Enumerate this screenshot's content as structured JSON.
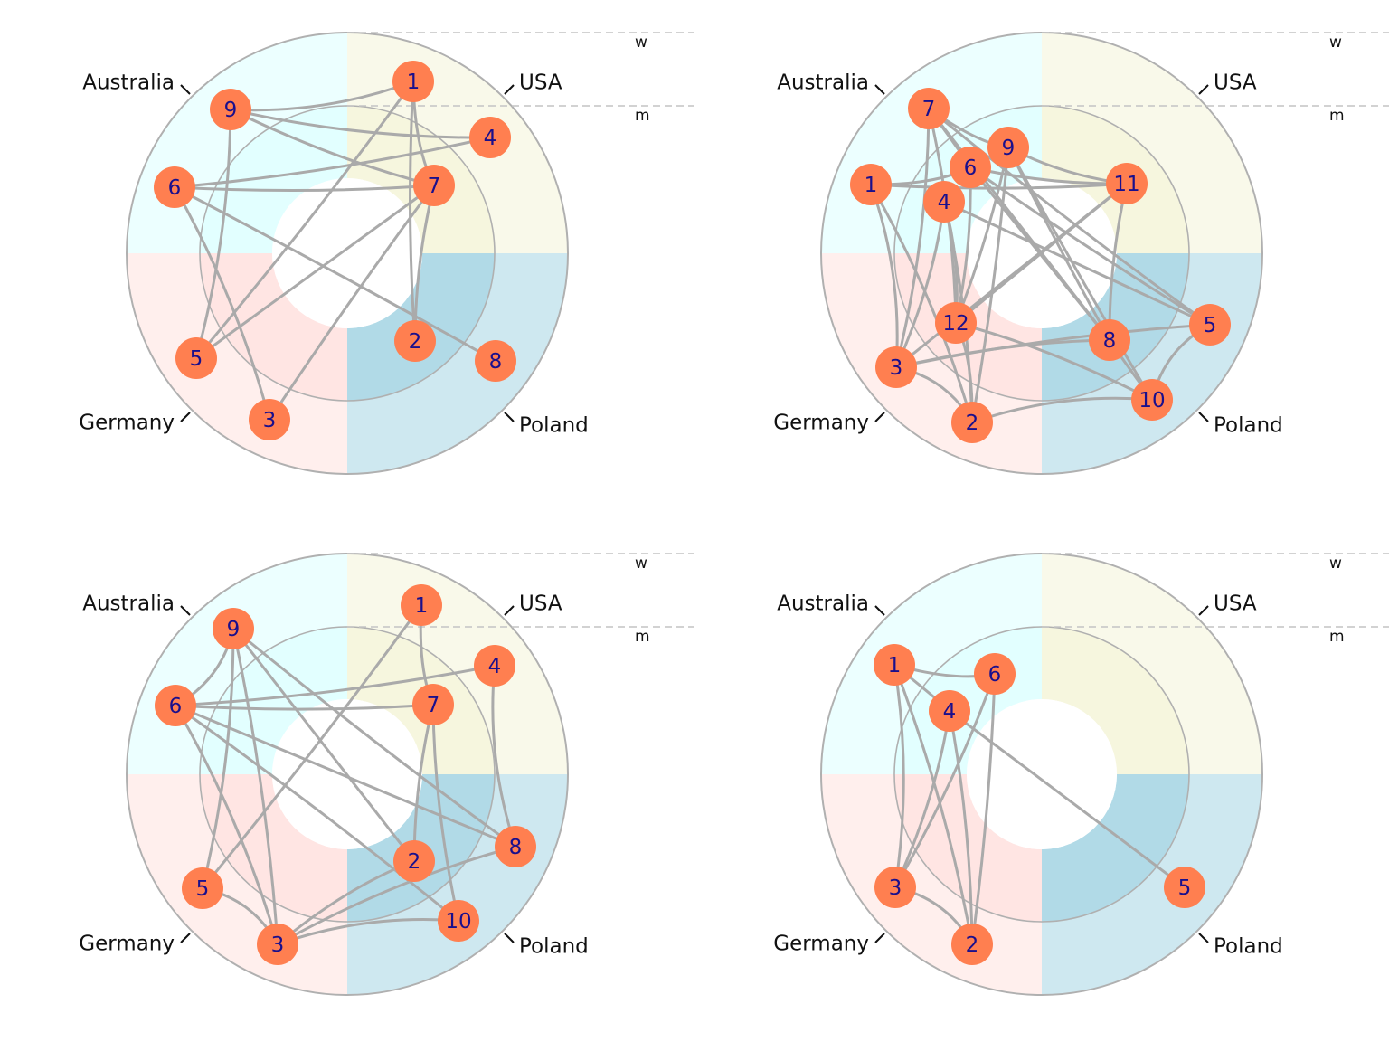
{
  "colors": {
    "node_fill": "#ff7f50",
    "node_text": "#1a0f8c",
    "edge": "#aaaaaa",
    "ring_stroke": "#b0b0b0",
    "sector_USA": "#f5f5dc",
    "sector_Poland": "#add8e6",
    "sector_Germany": "#ffe4e1",
    "sector_Australia": "#e0ffff"
  },
  "ring_labels": {
    "outer": "w",
    "inner": "m"
  },
  "sectors": [
    "USA",
    "Poland",
    "Germany",
    "Australia"
  ],
  "panels": [
    {
      "nodes": [
        {
          "id": "1",
          "sector": "USA",
          "ring": "w"
        },
        {
          "id": "4",
          "sector": "USA",
          "ring": "w"
        },
        {
          "id": "7",
          "sector": "USA",
          "ring": "m"
        },
        {
          "id": "2",
          "sector": "Poland",
          "ring": "m"
        },
        {
          "id": "8",
          "sector": "Poland",
          "ring": "w"
        },
        {
          "id": "3",
          "sector": "Germany",
          "ring": "w"
        },
        {
          "id": "5",
          "sector": "Germany",
          "ring": "w"
        },
        {
          "id": "6",
          "sector": "Australia",
          "ring": "w"
        },
        {
          "id": "9",
          "sector": "Australia",
          "ring": "w"
        }
      ],
      "edges": [
        [
          "9",
          "1"
        ],
        [
          "9",
          "4"
        ],
        [
          "9",
          "7"
        ],
        [
          "9",
          "5"
        ],
        [
          "6",
          "4"
        ],
        [
          "6",
          "7"
        ],
        [
          "6",
          "3"
        ],
        [
          "6",
          "8"
        ],
        [
          "1",
          "7"
        ],
        [
          "1",
          "2"
        ],
        [
          "1",
          "5"
        ],
        [
          "7",
          "2"
        ],
        [
          "7",
          "5"
        ],
        [
          "7",
          "3"
        ]
      ]
    },
    {
      "nodes": [
        {
          "id": "11",
          "sector": "USA",
          "ring": "m"
        },
        {
          "id": "5",
          "sector": "Poland",
          "ring": "w"
        },
        {
          "id": "8",
          "sector": "Poland",
          "ring": "m"
        },
        {
          "id": "10",
          "sector": "Poland",
          "ring": "w"
        },
        {
          "id": "2",
          "sector": "Germany",
          "ring": "w"
        },
        {
          "id": "3",
          "sector": "Germany",
          "ring": "w"
        },
        {
          "id": "12",
          "sector": "Germany",
          "ring": "m"
        },
        {
          "id": "1",
          "sector": "Australia",
          "ring": "w"
        },
        {
          "id": "4",
          "sector": "Australia",
          "ring": "m"
        },
        {
          "id": "6",
          "sector": "Australia",
          "ring": "m"
        },
        {
          "id": "7",
          "sector": "Australia",
          "ring": "w"
        },
        {
          "id": "9",
          "sector": "Australia",
          "ring": "m"
        }
      ],
      "edges": [
        [
          "7",
          "9"
        ],
        [
          "7",
          "6"
        ],
        [
          "7",
          "3"
        ],
        [
          "7",
          "8"
        ],
        [
          "7",
          "5"
        ],
        [
          "7",
          "12"
        ],
        [
          "1",
          "11"
        ],
        [
          "1",
          "6"
        ],
        [
          "1",
          "3"
        ],
        [
          "1",
          "2"
        ],
        [
          "9",
          "11"
        ],
        [
          "9",
          "12"
        ],
        [
          "9",
          "2"
        ],
        [
          "9",
          "8"
        ],
        [
          "9",
          "10"
        ],
        [
          "6",
          "12"
        ],
        [
          "6",
          "11"
        ],
        [
          "6",
          "8"
        ],
        [
          "6",
          "5"
        ],
        [
          "4",
          "12"
        ],
        [
          "4",
          "2"
        ],
        [
          "4",
          "5"
        ],
        [
          "4",
          "3"
        ],
        [
          "11",
          "12"
        ],
        [
          "11",
          "3"
        ],
        [
          "11",
          "8"
        ],
        [
          "12",
          "10"
        ],
        [
          "12",
          "2"
        ],
        [
          "3",
          "5"
        ],
        [
          "3",
          "8"
        ],
        [
          "3",
          "2"
        ],
        [
          "8",
          "10"
        ],
        [
          "5",
          "10"
        ],
        [
          "2",
          "10"
        ]
      ]
    },
    {
      "nodes": [
        {
          "id": "1",
          "sector": "USA",
          "ring": "w"
        },
        {
          "id": "4",
          "sector": "USA",
          "ring": "w"
        },
        {
          "id": "7",
          "sector": "USA",
          "ring": "m"
        },
        {
          "id": "2",
          "sector": "Poland",
          "ring": "m"
        },
        {
          "id": "8",
          "sector": "Poland",
          "ring": "w"
        },
        {
          "id": "10",
          "sector": "Poland",
          "ring": "w"
        },
        {
          "id": "3",
          "sector": "Germany",
          "ring": "w"
        },
        {
          "id": "5",
          "sector": "Germany",
          "ring": "w"
        },
        {
          "id": "6",
          "sector": "Australia",
          "ring": "w"
        },
        {
          "id": "9",
          "sector": "Australia",
          "ring": "w"
        }
      ],
      "edges": [
        [
          "9",
          "6"
        ],
        [
          "9",
          "5"
        ],
        [
          "9",
          "3"
        ],
        [
          "9",
          "2"
        ],
        [
          "9",
          "8"
        ],
        [
          "6",
          "4"
        ],
        [
          "6",
          "7"
        ],
        [
          "6",
          "3"
        ],
        [
          "6",
          "8"
        ],
        [
          "6",
          "10"
        ],
        [
          "1",
          "7"
        ],
        [
          "1",
          "5"
        ],
        [
          "4",
          "8"
        ],
        [
          "7",
          "2"
        ],
        [
          "7",
          "10"
        ],
        [
          "5",
          "3"
        ],
        [
          "3",
          "2"
        ],
        [
          "3",
          "8"
        ],
        [
          "3",
          "10"
        ]
      ]
    },
    {
      "nodes": [
        {
          "id": "5",
          "sector": "Poland",
          "ring": "w"
        },
        {
          "id": "2",
          "sector": "Germany",
          "ring": "w"
        },
        {
          "id": "3",
          "sector": "Germany",
          "ring": "w"
        },
        {
          "id": "1",
          "sector": "Australia",
          "ring": "w"
        },
        {
          "id": "4",
          "sector": "Australia",
          "ring": "m"
        },
        {
          "id": "6",
          "sector": "Australia",
          "ring": "m"
        }
      ],
      "edges": [
        [
          "1",
          "6"
        ],
        [
          "1",
          "4"
        ],
        [
          "1",
          "3"
        ],
        [
          "1",
          "2"
        ],
        [
          "4",
          "5"
        ],
        [
          "4",
          "3"
        ],
        [
          "4",
          "2"
        ],
        [
          "6",
          "3"
        ],
        [
          "6",
          "2"
        ],
        [
          "3",
          "2"
        ]
      ]
    }
  ]
}
